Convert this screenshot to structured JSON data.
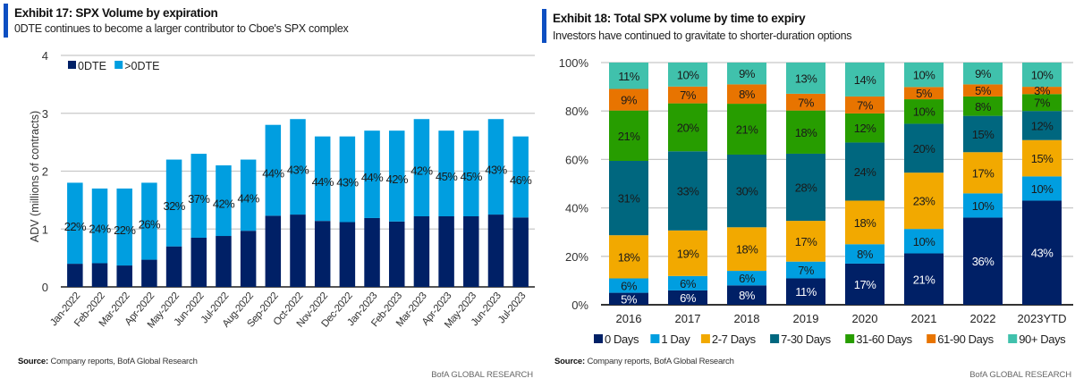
{
  "exhibits": [
    {
      "title": "Exhibit 17: SPX Volume by expiration",
      "subtitle": "0DTE continues to become a larger contributor to Cboe's SPX complex",
      "source_label": "Source:",
      "source_text": "Company reports, BofA Global Research",
      "brand": "BofA GLOBAL RESEARCH"
    },
    {
      "title": "Exhibit 18: Total SPX volume by time to expiry",
      "subtitle": "Investors have continued to gravitate to shorter-duration options",
      "source_label": "Source:",
      "source_text": "Company reports, BofA Global Research",
      "brand": "BofA GLOBAL RESEARCH"
    }
  ],
  "chart_data": [
    {
      "type": "bar",
      "stacked": true,
      "title": "Exhibit 17: SPX Volume by expiration",
      "xlabel": "",
      "ylabel": "ADV (millions of contracts)",
      "ylim": [
        0,
        4
      ],
      "yticks": [
        "0",
        "1",
        "2",
        "3",
        "4"
      ],
      "grid": true,
      "legend_position": "top-left",
      "categories": [
        "Jan-2022",
        "Feb-2022",
        "Mar-2022",
        "Apr-2022",
        "May-2022",
        "Jun-2022",
        "Jul-2022",
        "Aug-2022",
        "Sep-2022",
        "Oct-2022",
        "Nov-2022",
        "Dec-2022",
        "Jan-2023",
        "Feb-2023",
        "Mar-2023",
        "Apr-2023",
        "May-2023",
        "Jun-2023",
        "Jul-2023"
      ],
      "totals": [
        1.8,
        1.7,
        1.7,
        1.8,
        2.2,
        2.3,
        2.1,
        2.2,
        2.8,
        2.9,
        2.6,
        2.6,
        2.7,
        2.7,
        2.9,
        2.7,
        2.7,
        2.9,
        2.6
      ],
      "series": [
        {
          "name": "0DTE",
          "color": "#002066",
          "values": [
            0.4,
            0.41,
            0.37,
            0.47,
            0.7,
            0.85,
            0.88,
            0.97,
            1.23,
            1.25,
            1.14,
            1.12,
            1.19,
            1.13,
            1.22,
            1.22,
            1.22,
            1.25,
            1.2
          ]
        },
        {
          "name": ">0DTE",
          "color": "#009ee0",
          "values": [
            1.4,
            1.29,
            1.33,
            1.33,
            1.5,
            1.45,
            1.22,
            1.23,
            1.57,
            1.65,
            1.46,
            1.48,
            1.51,
            1.57,
            1.68,
            1.48,
            1.48,
            1.65,
            1.4
          ]
        }
      ],
      "data_labels": [
        "22%",
        "24%",
        "22%",
        "26%",
        "32%",
        "37%",
        "42%",
        "44%",
        "44%",
        "43%",
        "44%",
        "43%",
        "44%",
        "42%",
        "42%",
        "45%",
        "45%",
        "43%",
        "46%"
      ]
    },
    {
      "type": "bar",
      "stacked": true,
      "percent": true,
      "title": "Exhibit 18: Total SPX volume by time to expiry",
      "xlabel": "",
      "ylabel": "",
      "ylim": [
        0,
        100
      ],
      "yticks": [
        "0%",
        "20%",
        "40%",
        "60%",
        "80%",
        "100%"
      ],
      "grid": true,
      "legend_position": "bottom",
      "categories": [
        "2016",
        "2017",
        "2018",
        "2019",
        "2020",
        "2021",
        "2022",
        "2023YTD"
      ],
      "series": [
        {
          "name": "0 Days",
          "color": "#002066",
          "label_color": "#ffffff",
          "values": [
            5,
            6,
            8,
            11,
            17,
            21,
            36,
            43
          ]
        },
        {
          "name": "1 Day",
          "color": "#009ee0",
          "label_color": "#1a1a1a",
          "values": [
            6,
            6,
            6,
            7,
            8,
            10,
            10,
            10
          ]
        },
        {
          "name": "2-7 Days",
          "color": "#f2a900",
          "label_color": "#1a1a1a",
          "values": [
            18,
            19,
            18,
            17,
            18,
            23,
            17,
            15
          ]
        },
        {
          "name": "7-30 Days",
          "color": "#00677f",
          "label_color": "#1a1a1a",
          "values": [
            31,
            33,
            30,
            28,
            24,
            20,
            15,
            12
          ]
        },
        {
          "name": "31-60 Days",
          "color": "#279d00",
          "label_color": "#1a1a1a",
          "values": [
            21,
            20,
            21,
            18,
            12,
            10,
            8,
            7
          ]
        },
        {
          "name": "61-90 Days",
          "color": "#e87400",
          "label_color": "#1a1a1a",
          "values": [
            9,
            7,
            8,
            7,
            7,
            5,
            5,
            3
          ]
        },
        {
          "name": "90+ Days",
          "color": "#40c1ac",
          "label_color": "#1a1a1a",
          "values": [
            11,
            10,
            9,
            13,
            14,
            10,
            9,
            10
          ]
        }
      ]
    }
  ]
}
